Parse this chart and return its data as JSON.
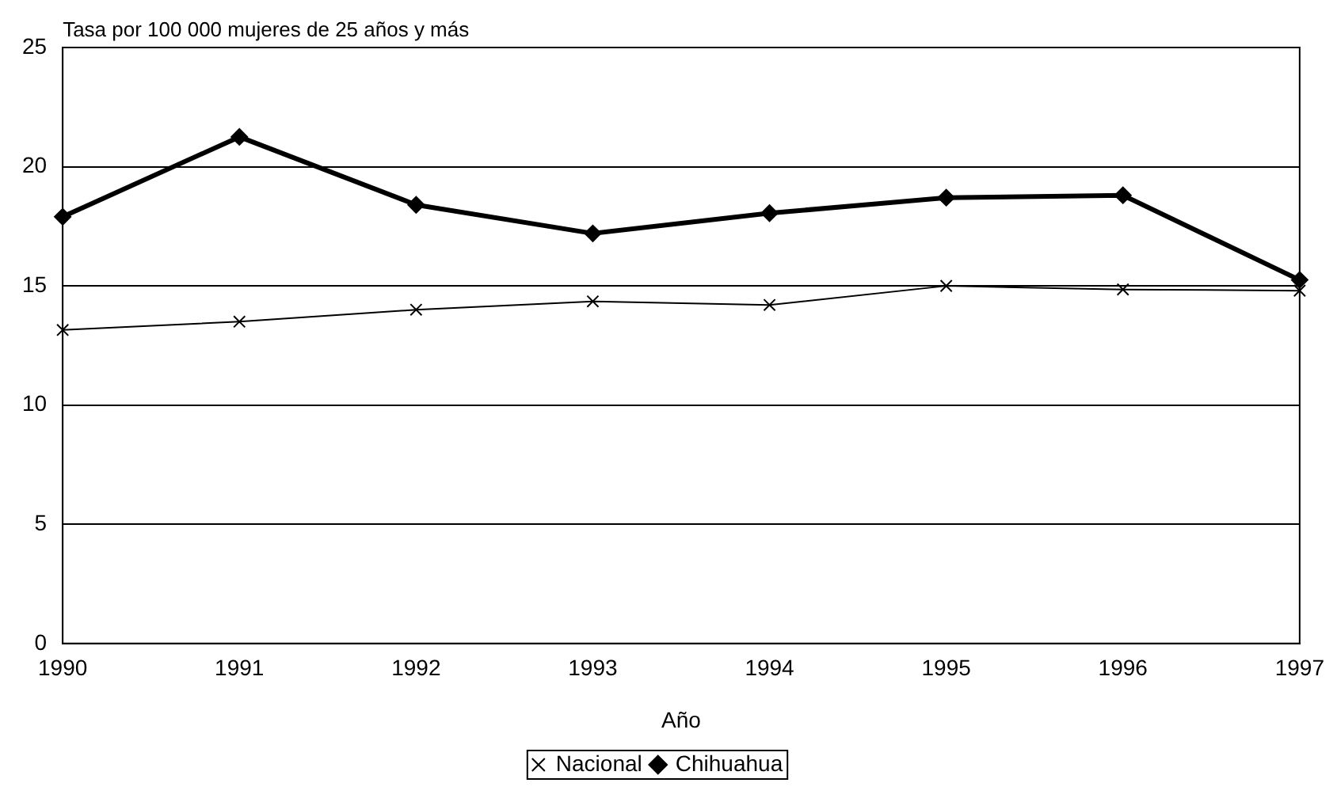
{
  "chart_data": {
    "type": "line",
    "ylabel": "Tasa por 100 000 mujeres de 25 años y más",
    "xlabel": "Año",
    "x": [
      1990,
      1991,
      1992,
      1993,
      1994,
      1995,
      1996,
      1997
    ],
    "xlim": [
      1990,
      1997
    ],
    "xticks": [
      1990,
      1991,
      1992,
      1993,
      1994,
      1995,
      1996,
      1997
    ],
    "ylim": [
      0,
      25
    ],
    "yticks": [
      0,
      5,
      10,
      15,
      20,
      25
    ],
    "grid": "y",
    "legend": "bottom",
    "line_style": "solid",
    "series": [
      {
        "name": "Nacional",
        "color": "#000000",
        "marker": "cross",
        "values": [
          13.15,
          13.5,
          14.0,
          14.35,
          14.2,
          15.0,
          14.85,
          14.8
        ]
      },
      {
        "name": "Chihuahua",
        "color": "#000000",
        "marker": "diamond",
        "values": [
          17.9,
          21.25,
          18.4,
          17.2,
          18.05,
          18.7,
          18.8,
          15.25
        ]
      }
    ]
  }
}
